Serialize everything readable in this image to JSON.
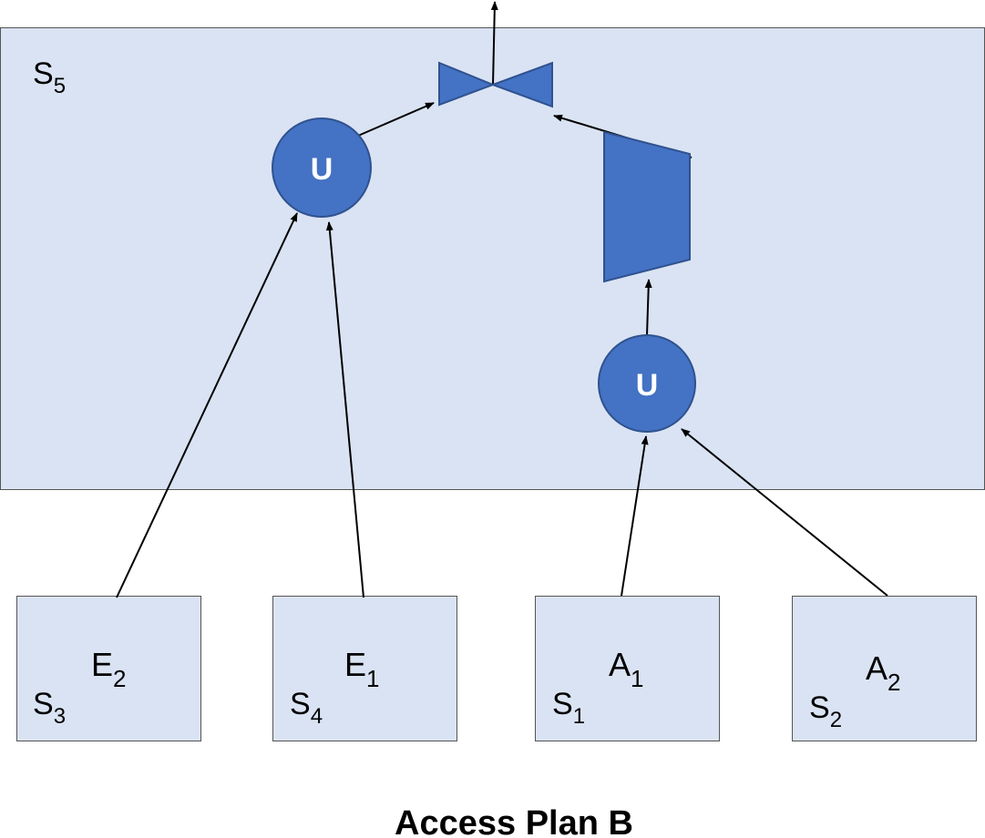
{
  "site_region": {
    "base": "S",
    "sub": "5"
  },
  "union_top": {
    "label": "U"
  },
  "union_bottom": {
    "label": "U"
  },
  "sources": [
    {
      "name": "E",
      "name_sub": "2",
      "site": "S",
      "site_sub": "3"
    },
    {
      "name": "E",
      "name_sub": "1",
      "site": "S",
      "site_sub": "4"
    },
    {
      "name": "A",
      "name_sub": "1",
      "site": "S",
      "site_sub": "1"
    },
    {
      "name": "A",
      "name_sub": "2",
      "site": "S",
      "site_sub": "2"
    }
  ],
  "title": "Access Plan B",
  "colors": {
    "region_fill": "#dae3f3",
    "node_fill": "#4472c4",
    "node_stroke": "#2f528f"
  }
}
